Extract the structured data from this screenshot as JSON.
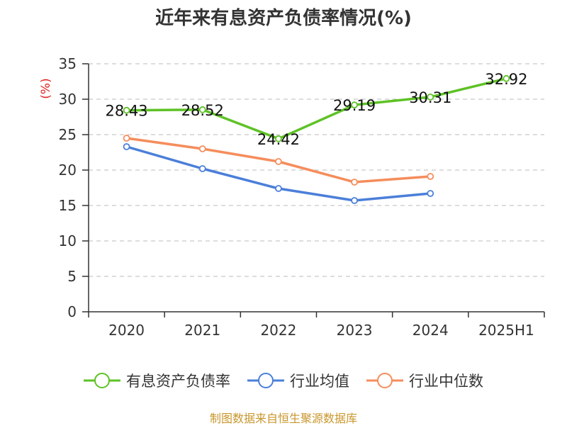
{
  "chart_data": {
    "type": "line",
    "title": "近年来有息资产负债率情况(%)",
    "ylabel": "(%)",
    "xlabel": "",
    "categories": [
      "2020",
      "2021",
      "2022",
      "2023",
      "2024",
      "2025H1"
    ],
    "ylim": [
      0,
      35
    ],
    "yticks": [
      0,
      5,
      10,
      15,
      20,
      25,
      30,
      35
    ],
    "grid": true,
    "legend_position": "bottom",
    "series": [
      {
        "name": "有息资产负债率",
        "color": "#5ec226",
        "values": [
          28.43,
          28.52,
          24.42,
          29.19,
          30.31,
          32.92
        ],
        "labels": [
          "28.43",
          "28.52",
          "24.42",
          "29.19",
          "30.31",
          "32.92"
        ]
      },
      {
        "name": "行业均值",
        "color": "#4b7fd9",
        "values": [
          23.3,
          20.2,
          17.4,
          15.7,
          16.7,
          null
        ]
      },
      {
        "name": "行业中位数",
        "color": "#f58d5c",
        "values": [
          24.5,
          23.0,
          21.2,
          18.3,
          19.1,
          null
        ]
      }
    ]
  },
  "footer": {
    "source": "制图数据来自恒生聚源数据库"
  },
  "colors": {
    "title": "#333333",
    "axis": "#333333",
    "grid": "#bbbbbb",
    "ylabel": "#e02020",
    "footer": "#c8962c"
  }
}
